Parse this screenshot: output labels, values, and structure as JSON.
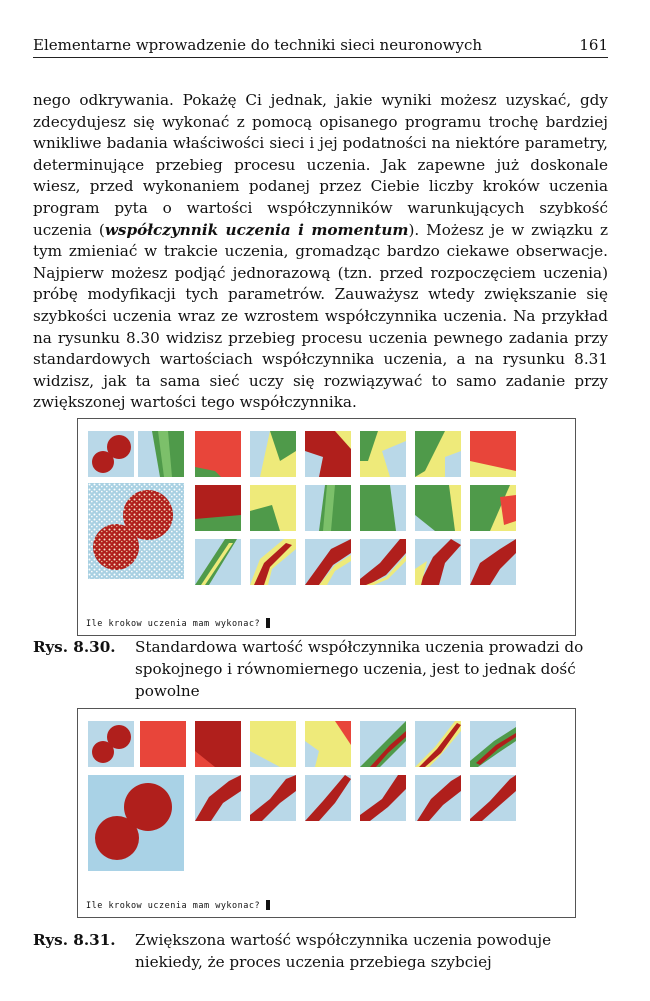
{
  "header": {
    "title": "Elementarne wprowadzenie do techniki sieci neuronowych",
    "page_number": "161"
  },
  "paragraph": {
    "part1": "nego odkrywania. Pokażę Ci jednak, jakie wyniki możesz uzyskać, gdy zdecydujesz się wykonać z pomocą opisanego programu trochę bardziej wnikliwe badania właściwości sieci i jej podatności na niektóre parametry, determinujące przebieg procesu uczenia. Jak zapewne już doskonale wiesz, przed wykonaniem podanej przez Ciebie liczby kroków uczenia program pyta o wartości współczynników warunkujących szybkość uczenia (",
    "emphasis": "współczynnik uczenia i momentum",
    "part2": "). Możesz je w związku z tym zmieniać w trakcie uczenia, gromadząc bardzo ciekawe obserwacje. Najpierw możesz podjąć jednorazową (tzn. przed rozpoczęciem uczenia) próbę modyfikacji tych parametrów. Zauważysz wtedy zwiększanie się szybkości uczenia wraz ze wzrostem współczynnika uczenia. Na przykład na rysunku 8.30 widzisz przebieg procesu uczenia pewnego zadania przy standardowych wartościach współczynnika uczenia, a na rysunku 8.31 widzisz, jak ta sama sieć uczy się rozwiązywać to samo zadanie przy zwiększonej wartości tego współczynnika."
  },
  "figures": [
    {
      "prompt": "Ile krokow uczenia mam wykonac?",
      "caption_label": "Rys. 8.30.",
      "caption_text": "Standardowa wartość współczynnika uczenia prowadzi do spokojnego i równomiernego uczenia, jest to jednak dość powolne"
    },
    {
      "prompt": "Ile krokow uczenia mam wykonac?",
      "caption_label": "Rys. 8.31.",
      "caption_text": "Zwiększona wartość współczynnika uczenia powoduje niekiedy, że proces uczenia przebiega szybciej"
    }
  ],
  "colors": {
    "background_blue": "#b9d8e8",
    "class_red": "#b01f1c",
    "output_red": "#e8453a",
    "output_yellow": "#eeea7a",
    "output_green": "#4f9a4a",
    "page_text": "#111111"
  }
}
